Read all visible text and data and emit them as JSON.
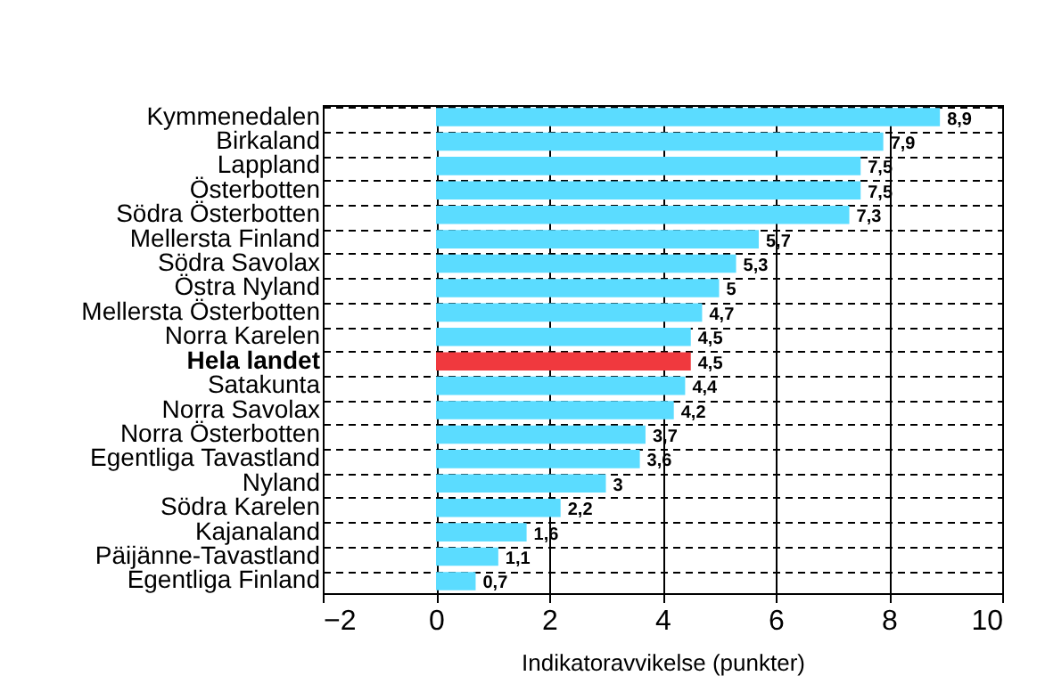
{
  "chart_data": {
    "type": "bar",
    "orientation": "horizontal",
    "xlabel": "Indikatoravvikelse (punkter)",
    "categories": [
      "Kymmenedalen",
      "Birkaland",
      "Lappland",
      "Österbotten",
      "Södra Österbotten",
      "Mellersta Finland",
      "Södra Savolax",
      "Östra Nyland",
      "Mellersta Österbotten",
      "Norra Karelen",
      "Hela landet",
      "Satakunta",
      "Norra Savolax",
      "Norra Österbotten",
      "Egentliga Tavastland",
      "Nyland",
      "Södra Karelen",
      "Kajanaland",
      "Päijänne-Tavastland",
      "Egentliga Finland"
    ],
    "values": [
      8.9,
      7.9,
      7.5,
      7.5,
      7.3,
      5.7,
      5.3,
      5,
      4.7,
      4.5,
      4.5,
      4.4,
      4.2,
      3.7,
      3.6,
      3,
      2.2,
      1.6,
      1.1,
      0.7
    ],
    "value_labels": [
      "8,9",
      "7,9",
      "7,5",
      "7,5",
      "7,3",
      "5,7",
      "5,3",
      "5",
      "4,7",
      "4,5",
      "4,5",
      "4,4",
      "4,2",
      "3,7",
      "3,6",
      "3",
      "2,2",
      "1,6",
      "1,1",
      "0,7"
    ],
    "colors": [
      "#5bdcff",
      "#5bdcff",
      "#5bdcff",
      "#5bdcff",
      "#5bdcff",
      "#5bdcff",
      "#5bdcff",
      "#5bdcff",
      "#5bdcff",
      "#5bdcff",
      "#f0393e",
      "#5bdcff",
      "#5bdcff",
      "#5bdcff",
      "#5bdcff",
      "#5bdcff",
      "#5bdcff",
      "#5bdcff",
      "#5bdcff",
      "#5bdcff"
    ],
    "xlim": [
      -2,
      10
    ],
    "xticks": [
      -2,
      0,
      2,
      4,
      6,
      8,
      10
    ],
    "grid": true
  }
}
